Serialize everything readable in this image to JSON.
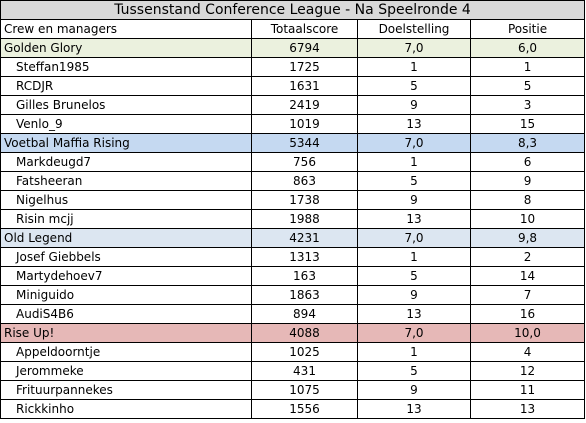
{
  "title": "Tussenstand Conference League - Na Speelronde 4",
  "headers": [
    "Crew en managers",
    "Totaalscore",
    "Doelstelling",
    "Positie"
  ],
  "teams": [
    {
      "name": "Golden Glory",
      "score": "6794",
      "doel": "7,0",
      "positie": "6,0",
      "color": "#ebf1de",
      "managers": [
        {
          "name": "Steffan1985",
          "score": "1725",
          "doel": "1",
          "positie": "1"
        },
        {
          "name": "RCDJR",
          "score": "1631",
          "doel": "5",
          "positie": "5"
        },
        {
          "name": "Gilles Brunelos",
          "score": "2419",
          "doel": "9",
          "positie": "3"
        },
        {
          "name": "Venlo_9",
          "score": "1019",
          "doel": "13",
          "positie": "15"
        }
      ]
    },
    {
      "name": "Voetbal Maffia Rising",
      "score": "5344",
      "doel": "7,0",
      "positie": "8,3",
      "color": "#c5d9f1",
      "managers": [
        {
          "name": "Markdeugd7",
          "score": "756",
          "doel": "1",
          "positie": "6"
        },
        {
          "name": "Fatsheeran",
          "score": "863",
          "doel": "5",
          "positie": "9"
        },
        {
          "name": "Nigelhus",
          "score": "1738",
          "doel": "9",
          "positie": "8"
        },
        {
          "name": "Risin mcjj",
          "score": "1988",
          "doel": "13",
          "positie": "10"
        }
      ]
    },
    {
      "name": "Old Legend",
      "score": "4231",
      "doel": "7,0",
      "positie": "9,8",
      "color": "#dce6f1",
      "managers": [
        {
          "name": "Josef Giebbels",
          "score": "1313",
          "doel": "1",
          "positie": "2"
        },
        {
          "name": "Martydehoev7",
          "score": "163",
          "doel": "5",
          "positie": "14"
        },
        {
          "name": "Miniguido",
          "score": "1863",
          "doel": "9",
          "positie": "7"
        },
        {
          "name": "AudiS4B6",
          "score": "894",
          "doel": "13",
          "positie": "16"
        }
      ]
    },
    {
      "name": "Rise Up!",
      "score": "4088",
      "doel": "7,0",
      "positie": "10,0",
      "color": "#e6b8b7",
      "managers": [
        {
          "name": "Appeldoorntje",
          "score": "1025",
          "doel": "1",
          "positie": "4"
        },
        {
          "name": "Jerommeke",
          "score": "431",
          "doel": "5",
          "positie": "12"
        },
        {
          "name": "Frituurpannekes",
          "score": "1075",
          "doel": "9",
          "positie": "11"
        },
        {
          "name": "Rickkinho",
          "score": "1556",
          "doel": "13",
          "positie": "13"
        }
      ]
    }
  ]
}
